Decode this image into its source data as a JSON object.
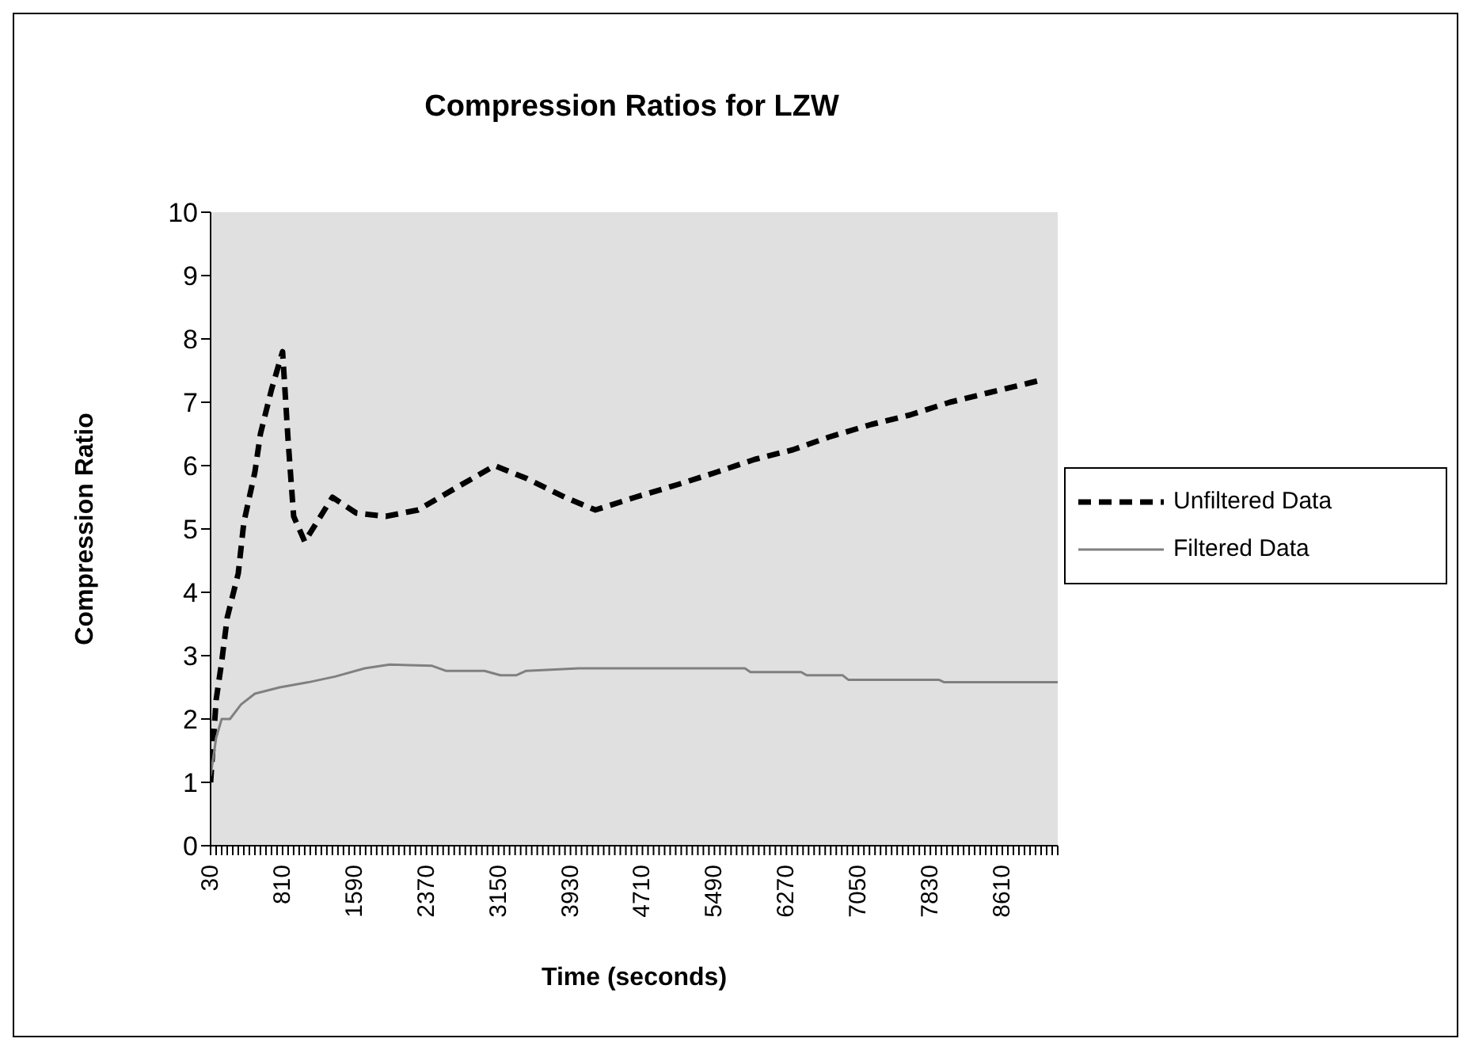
{
  "chart_data": {
    "type": "line",
    "title": "Compression Ratios for LZW",
    "xlabel": "Time (seconds)",
    "ylabel": "Compression Ratio",
    "xlim": [
      30,
      9210
    ],
    "ylim": [
      0,
      10
    ],
    "yticks": [
      0,
      1,
      2,
      3,
      4,
      5,
      6,
      7,
      8,
      9,
      10
    ],
    "xticks": [
      30,
      {
        "value": 90,
        "label": null
      },
      {
        "value": 150,
        "label": null
      },
      {
        "value": 210,
        "label": null
      },
      {
        "value": 270,
        "label": null
      },
      {
        "value": 330,
        "label": null
      },
      {
        "value": 390,
        "label": null
      },
      {
        "value": 450,
        "label": null
      },
      {
        "value": 510,
        "label": null
      },
      {
        "value": 570,
        "label": null
      },
      {
        "value": 630,
        "label": null
      },
      {
        "value": 690,
        "label": null
      },
      {
        "value": 750,
        "label": null
      },
      810,
      {
        "value": 870,
        "label": null
      },
      {
        "value": 930,
        "label": null
      },
      {
        "value": 990,
        "label": null
      },
      {
        "value": 1050,
        "label": null
      },
      {
        "value": 1110,
        "label": null
      },
      {
        "value": 1170,
        "label": null
      },
      {
        "value": 1230,
        "label": null
      },
      {
        "value": 1290,
        "label": null
      },
      {
        "value": 1350,
        "label": null
      },
      {
        "value": 1410,
        "label": null
      },
      {
        "value": 1470,
        "label": null
      },
      {
        "value": 1530,
        "label": null
      },
      1590,
      {
        "value": 1650,
        "label": null
      },
      {
        "value": 1710,
        "label": null
      },
      {
        "value": 1770,
        "label": null
      },
      {
        "value": 1830,
        "label": null
      },
      {
        "value": 1890,
        "label": null
      },
      {
        "value": 1950,
        "label": null
      },
      {
        "value": 2010,
        "label": null
      },
      {
        "value": 2070,
        "label": null
      },
      {
        "value": 2130,
        "label": null
      },
      {
        "value": 2190,
        "label": null
      },
      {
        "value": 2250,
        "label": null
      },
      {
        "value": 2310,
        "label": null
      },
      2370,
      {
        "value": 2430,
        "label": null
      },
      {
        "value": 2490,
        "label": null
      },
      {
        "value": 2550,
        "label": null
      },
      {
        "value": 2610,
        "label": null
      },
      {
        "value": 2670,
        "label": null
      },
      {
        "value": 2730,
        "label": null
      },
      {
        "value": 2790,
        "label": null
      },
      {
        "value": 2850,
        "label": null
      },
      {
        "value": 2910,
        "label": null
      },
      {
        "value": 2970,
        "label": null
      },
      {
        "value": 3030,
        "label": null
      },
      {
        "value": 3090,
        "label": null
      },
      3150,
      {
        "value": 3210,
        "label": null
      },
      {
        "value": 3270,
        "label": null
      },
      {
        "value": 3330,
        "label": null
      },
      {
        "value": 3390,
        "label": null
      },
      {
        "value": 3450,
        "label": null
      },
      {
        "value": 3510,
        "label": null
      },
      {
        "value": 3570,
        "label": null
      },
      {
        "value": 3630,
        "label": null
      },
      {
        "value": 3690,
        "label": null
      },
      {
        "value": 3750,
        "label": null
      },
      {
        "value": 3810,
        "label": null
      },
      {
        "value": 3870,
        "label": null
      },
      3930,
      {
        "value": 3990,
        "label": null
      },
      {
        "value": 4050,
        "label": null
      },
      {
        "value": 4110,
        "label": null
      },
      {
        "value": 4170,
        "label": null
      },
      {
        "value": 4230,
        "label": null
      },
      {
        "value": 4290,
        "label": null
      },
      {
        "value": 4350,
        "label": null
      },
      {
        "value": 4410,
        "label": null
      },
      {
        "value": 4470,
        "label": null
      },
      {
        "value": 4530,
        "label": null
      },
      {
        "value": 4590,
        "label": null
      },
      {
        "value": 4650,
        "label": null
      },
      4710,
      {
        "value": 4770,
        "label": null
      },
      {
        "value": 4830,
        "label": null
      },
      {
        "value": 4890,
        "label": null
      },
      {
        "value": 4950,
        "label": null
      },
      {
        "value": 5010,
        "label": null
      },
      {
        "value": 5070,
        "label": null
      },
      {
        "value": 5130,
        "label": null
      },
      {
        "value": 5190,
        "label": null
      },
      {
        "value": 5250,
        "label": null
      },
      {
        "value": 5310,
        "label": null
      },
      {
        "value": 5370,
        "label": null
      },
      {
        "value": 5430,
        "label": null
      },
      5490,
      {
        "value": 5550,
        "label": null
      },
      {
        "value": 5610,
        "label": null
      },
      {
        "value": 5670,
        "label": null
      },
      {
        "value": 5730,
        "label": null
      },
      {
        "value": 5790,
        "label": null
      },
      {
        "value": 5850,
        "label": null
      },
      {
        "value": 5910,
        "label": null
      },
      {
        "value": 5970,
        "label": null
      },
      {
        "value": 6030,
        "label": null
      },
      {
        "value": 6090,
        "label": null
      },
      {
        "value": 6150,
        "label": null
      },
      {
        "value": 6210,
        "label": null
      },
      6270,
      {
        "value": 6330,
        "label": null
      },
      {
        "value": 6390,
        "label": null
      },
      {
        "value": 6450,
        "label": null
      },
      {
        "value": 6510,
        "label": null
      },
      {
        "value": 6570,
        "label": null
      },
      {
        "value": 6630,
        "label": null
      },
      {
        "value": 6690,
        "label": null
      },
      {
        "value": 6750,
        "label": null
      },
      {
        "value": 6810,
        "label": null
      },
      {
        "value": 6870,
        "label": null
      },
      {
        "value": 6930,
        "label": null
      },
      {
        "value": 6990,
        "label": null
      },
      7050,
      {
        "value": 7110,
        "label": null
      },
      {
        "value": 7170,
        "label": null
      },
      {
        "value": 7230,
        "label": null
      },
      {
        "value": 7290,
        "label": null
      },
      {
        "value": 7350,
        "label": null
      },
      {
        "value": 7410,
        "label": null
      },
      {
        "value": 7470,
        "label": null
      },
      {
        "value": 7530,
        "label": null
      },
      {
        "value": 7590,
        "label": null
      },
      {
        "value": 7650,
        "label": null
      },
      {
        "value": 7710,
        "label": null
      },
      {
        "value": 7770,
        "label": null
      },
      7830,
      {
        "value": 7890,
        "label": null
      },
      {
        "value": 7950,
        "label": null
      },
      {
        "value": 8010,
        "label": null
      },
      {
        "value": 8070,
        "label": null
      },
      {
        "value": 8130,
        "label": null
      },
      {
        "value": 8190,
        "label": null
      },
      {
        "value": 8250,
        "label": null
      },
      {
        "value": 8310,
        "label": null
      },
      {
        "value": 8370,
        "label": null
      },
      {
        "value": 8430,
        "label": null
      },
      {
        "value": 8490,
        "label": null
      },
      {
        "value": 8550,
        "label": null
      },
      8610,
      {
        "value": 8670,
        "label": null
      },
      {
        "value": 8730,
        "label": null
      },
      {
        "value": 8790,
        "label": null
      },
      {
        "value": 8850,
        "label": null
      },
      {
        "value": 8910,
        "label": null
      },
      {
        "value": 8970,
        "label": null
      },
      {
        "value": 9030,
        "label": null
      },
      {
        "value": 9090,
        "label": null
      },
      {
        "value": 9150,
        "label": null
      },
      {
        "value": 9210,
        "label": null
      }
    ],
    "legend": "right",
    "marker": "none",
    "series": [
      {
        "name": "Unfiltered Data",
        "color": "#000000",
        "line_style": "dashed",
        "x": [
          30,
          90,
          150,
          210,
          330,
          390,
          510,
          570,
          690,
          810,
          870,
          930,
          1050,
          1350,
          1610,
          1930,
          2280,
          2690,
          3110,
          3450,
          3870,
          4200,
          4630,
          5090,
          5520,
          5930,
          6340,
          6730,
          7190,
          7610,
          8040,
          8460,
          8890,
          9030
        ],
        "values": [
          1.0,
          2.3,
          2.9,
          3.6,
          4.3,
          5.1,
          5.9,
          6.5,
          7.2,
          7.8,
          6.4,
          5.2,
          4.8,
          5.5,
          5.25,
          5.2,
          5.3,
          5.65,
          6.0,
          5.8,
          5.5,
          5.3,
          5.5,
          5.7,
          5.9,
          6.1,
          6.25,
          6.45,
          6.65,
          6.8,
          7.0,
          7.15,
          7.3,
          7.35
        ]
      },
      {
        "name": "Filtered Data",
        "color": "#808080",
        "line_style": "solid",
        "x": [
          30,
          90,
          150,
          240,
          360,
          510,
          780,
          1090,
          1380,
          1700,
          1970,
          2430,
          2580,
          3000,
          3170,
          3340,
          3450,
          4020,
          4650,
          5820,
          5880,
          6430,
          6490,
          6880,
          6940,
          7920,
          7980,
          9210
        ],
        "values": [
          1.1,
          1.7,
          2.0,
          2.0,
          2.23,
          2.4,
          2.5,
          2.58,
          2.67,
          2.8,
          2.86,
          2.84,
          2.76,
          2.76,
          2.69,
          2.69,
          2.76,
          2.8,
          2.8,
          2.8,
          2.74,
          2.74,
          2.69,
          2.69,
          2.62,
          2.62,
          2.58,
          2.58
        ]
      }
    ]
  }
}
